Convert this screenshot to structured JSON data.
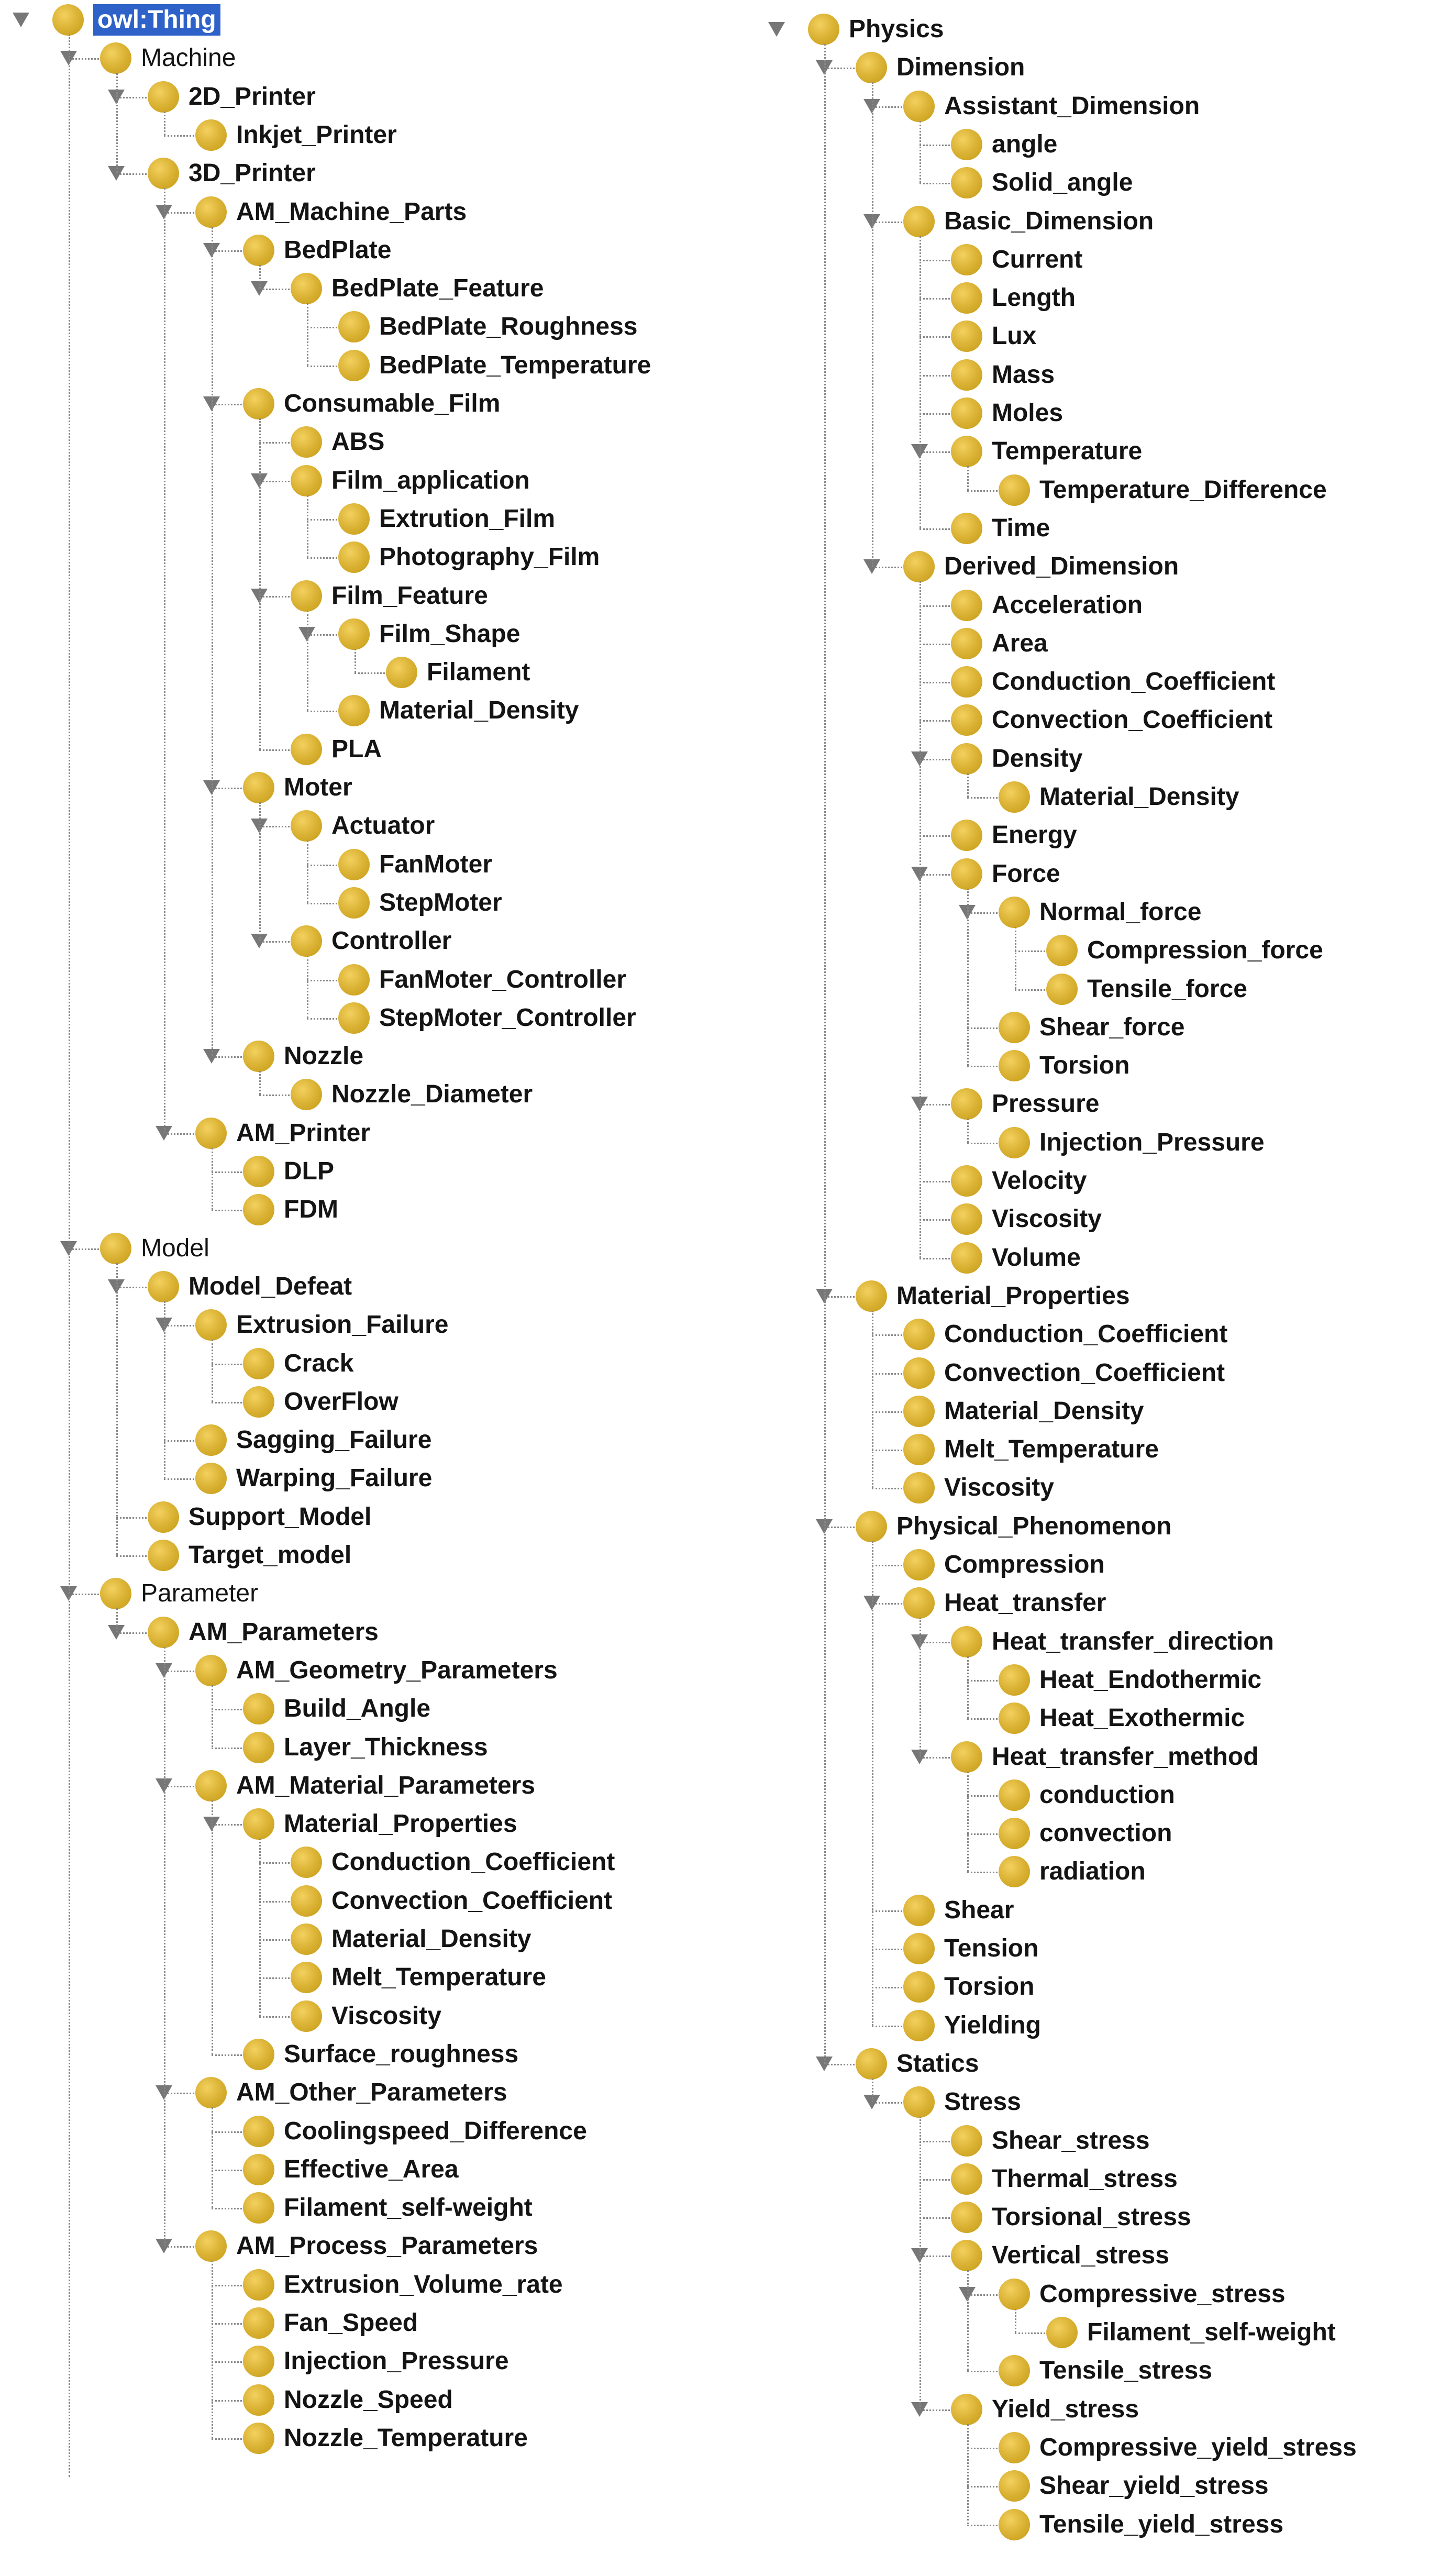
{
  "colors": {
    "node": "#d8ad2f",
    "selection": "#2f62c9",
    "connector": "#888888",
    "arrow": "#777777",
    "text": "#141414"
  },
  "icons": {
    "node": "class-circle-icon",
    "expander": "expand-arrow-icon"
  },
  "columns": [
    {
      "left": [
        {
          "label": "owl:Thing",
          "selected": true,
          "children": [
            {
              "label": "Machine",
              "plain": true,
              "children": [
                {
                  "label": "2D_Printer",
                  "children": [
                    {
                      "label": "Inkjet_Printer"
                    }
                  ]
                },
                {
                  "label": "3D_Printer",
                  "children": [
                    {
                      "label": "AM_Machine_Parts",
                      "children": [
                        {
                          "label": "BedPlate",
                          "children": [
                            {
                              "label": "BedPlate_Feature",
                              "children": [
                                {
                                  "label": "BedPlate_Roughness"
                                },
                                {
                                  "label": "BedPlate_Temperature"
                                }
                              ]
                            }
                          ]
                        },
                        {
                          "label": "Consumable_Film",
                          "children": [
                            {
                              "label": "ABS"
                            },
                            {
                              "label": "Film_application",
                              "children": [
                                {
                                  "label": "Extrution_Film"
                                },
                                {
                                  "label": "Photography_Film"
                                }
                              ]
                            },
                            {
                              "label": "Film_Feature",
                              "children": [
                                {
                                  "label": "Film_Shape",
                                  "children": [
                                    {
                                      "label": "Filament"
                                    }
                                  ]
                                },
                                {
                                  "label": "Material_Density"
                                }
                              ]
                            },
                            {
                              "label": "PLA"
                            }
                          ]
                        },
                        {
                          "label": "Moter",
                          "children": [
                            {
                              "label": "Actuator",
                              "children": [
                                {
                                  "label": "FanMoter"
                                },
                                {
                                  "label": "StepMoter"
                                }
                              ]
                            },
                            {
                              "label": "Controller",
                              "children": [
                                {
                                  "label": "FanMoter_Controller"
                                },
                                {
                                  "label": "StepMoter_Controller"
                                }
                              ]
                            }
                          ]
                        },
                        {
                          "label": "Nozzle",
                          "children": [
                            {
                              "label": "Nozzle_Diameter"
                            }
                          ]
                        }
                      ]
                    },
                    {
                      "label": "AM_Printer",
                      "children": [
                        {
                          "label": "DLP"
                        },
                        {
                          "label": "FDM"
                        }
                      ]
                    }
                  ]
                }
              ]
            },
            {
              "label": "Model",
              "plain": true,
              "children": [
                {
                  "label": "Model_Defeat",
                  "children": [
                    {
                      "label": "Extrusion_Failure",
                      "children": [
                        {
                          "label": "Crack"
                        },
                        {
                          "label": "OverFlow"
                        }
                      ]
                    },
                    {
                      "label": "Sagging_Failure"
                    },
                    {
                      "label": "Warping_Failure"
                    }
                  ]
                },
                {
                  "label": "Support_Model"
                },
                {
                  "label": "Target_model"
                }
              ]
            },
            {
              "label": "Parameter",
              "plain": true,
              "children": [
                {
                  "label": "AM_Parameters",
                  "children": [
                    {
                      "label": "AM_Geometry_Parameters",
                      "children": [
                        {
                          "label": "Build_Angle"
                        },
                        {
                          "label": "Layer_Thickness"
                        }
                      ]
                    },
                    {
                      "label": "AM_Material_Parameters",
                      "children": [
                        {
                          "label": "Material_Properties",
                          "children": [
                            {
                              "label": "Conduction_Coefficient"
                            },
                            {
                              "label": "Convection_Coefficient"
                            },
                            {
                              "label": "Material_Density"
                            },
                            {
                              "label": "Melt_Temperature"
                            },
                            {
                              "label": "Viscosity"
                            }
                          ]
                        },
                        {
                          "label": "Surface_roughness"
                        }
                      ]
                    },
                    {
                      "label": "AM_Other_Parameters",
                      "children": [
                        {
                          "label": "Coolingspeed_Difference"
                        },
                        {
                          "label": "Effective_Area"
                        },
                        {
                          "label": "Filament_self-weight"
                        }
                      ]
                    },
                    {
                      "label": "AM_Process_Parameters",
                      "children": [
                        {
                          "label": "Extrusion_Volume_rate"
                        },
                        {
                          "label": "Fan_Speed"
                        },
                        {
                          "label": "Injection_Pressure"
                        },
                        {
                          "label": "Nozzle_Speed"
                        },
                        {
                          "label": "Nozzle_Temperature"
                        }
                      ]
                    }
                  ]
                }
              ]
            }
          ]
        }
      ]
    },
    {
      "right": [
        {
          "label": "Physics",
          "children": [
            {
              "label": "Dimension",
              "children": [
                {
                  "label": "Assistant_Dimension",
                  "children": [
                    {
                      "label": "angle"
                    },
                    {
                      "label": "Solid_angle"
                    }
                  ]
                },
                {
                  "label": "Basic_Dimension",
                  "children": [
                    {
                      "label": "Current"
                    },
                    {
                      "label": "Length"
                    },
                    {
                      "label": "Lux"
                    },
                    {
                      "label": "Mass"
                    },
                    {
                      "label": "Moles"
                    },
                    {
                      "label": "Temperature",
                      "children": [
                        {
                          "label": "Temperature_Difference"
                        }
                      ]
                    },
                    {
                      "label": "Time"
                    }
                  ]
                },
                {
                  "label": "Derived_Dimension",
                  "children": [
                    {
                      "label": "Acceleration"
                    },
                    {
                      "label": "Area"
                    },
                    {
                      "label": "Conduction_Coefficient"
                    },
                    {
                      "label": "Convection_Coefficient"
                    },
                    {
                      "label": "Density",
                      "children": [
                        {
                          "label": "Material_Density"
                        }
                      ]
                    },
                    {
                      "label": "Energy"
                    },
                    {
                      "label": "Force",
                      "children": [
                        {
                          "label": "Normal_force",
                          "children": [
                            {
                              "label": "Compression_force"
                            },
                            {
                              "label": "Tensile_force"
                            }
                          ]
                        },
                        {
                          "label": "Shear_force"
                        },
                        {
                          "label": "Torsion"
                        }
                      ]
                    },
                    {
                      "label": "Pressure",
                      "children": [
                        {
                          "label": "Injection_Pressure"
                        }
                      ]
                    },
                    {
                      "label": "Velocity"
                    },
                    {
                      "label": "Viscosity"
                    },
                    {
                      "label": "Volume"
                    }
                  ]
                }
              ]
            },
            {
              "label": "Material_Properties",
              "children": [
                {
                  "label": "Conduction_Coefficient"
                },
                {
                  "label": "Convection_Coefficient"
                },
                {
                  "label": "Material_Density"
                },
                {
                  "label": "Melt_Temperature"
                },
                {
                  "label": "Viscosity"
                }
              ]
            },
            {
              "label": "Physical_Phenomenon",
              "children": [
                {
                  "label": "Compression"
                },
                {
                  "label": "Heat_transfer",
                  "children": [
                    {
                      "label": "Heat_transfer_direction",
                      "children": [
                        {
                          "label": "Heat_Endothermic"
                        },
                        {
                          "label": "Heat_Exothermic"
                        }
                      ]
                    },
                    {
                      "label": "Heat_transfer_method",
                      "children": [
                        {
                          "label": "conduction"
                        },
                        {
                          "label": "convection"
                        },
                        {
                          "label": "radiation"
                        }
                      ]
                    }
                  ]
                },
                {
                  "label": "Shear"
                },
                {
                  "label": "Tension"
                },
                {
                  "label": "Torsion"
                },
                {
                  "label": "Yielding"
                }
              ]
            },
            {
              "label": "Statics",
              "children": [
                {
                  "label": "Stress",
                  "children": [
                    {
                      "label": "Shear_stress"
                    },
                    {
                      "label": "Thermal_stress"
                    },
                    {
                      "label": "Torsional_stress"
                    },
                    {
                      "label": "Vertical_stress",
                      "children": [
                        {
                          "label": "Compressive_stress",
                          "children": [
                            {
                              "label": "Filament_self-weight"
                            }
                          ]
                        },
                        {
                          "label": "Tensile_stress"
                        }
                      ]
                    },
                    {
                      "label": "Yield_stress",
                      "children": [
                        {
                          "label": "Compressive_yield_stress"
                        },
                        {
                          "label": "Shear_yield_stress"
                        },
                        {
                          "label": "Tensile_yield_stress"
                        }
                      ]
                    }
                  ]
                }
              ]
            }
          ]
        }
      ]
    }
  ]
}
